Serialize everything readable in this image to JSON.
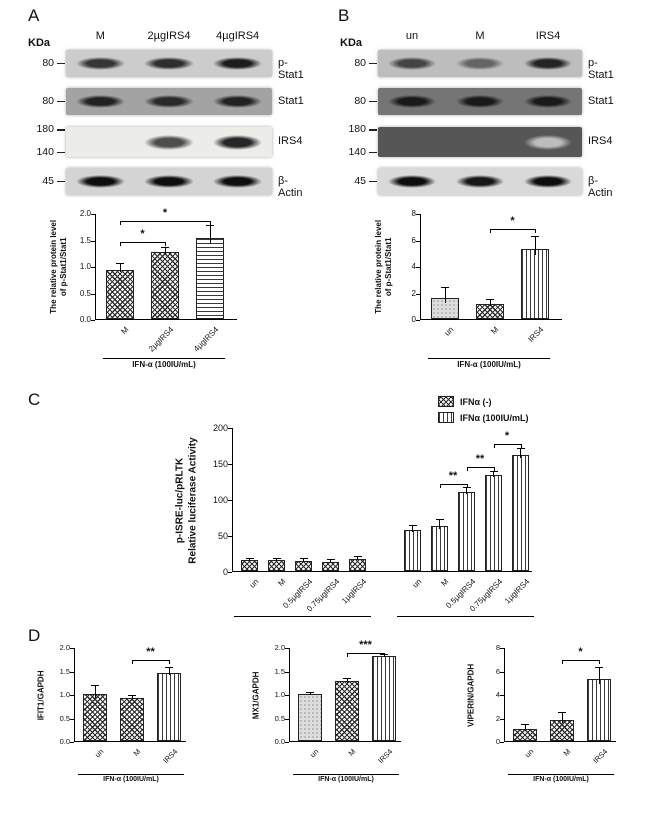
{
  "figure": {
    "bg": "#ffffff",
    "ink": "#111111"
  },
  "panelA": {
    "label": "A",
    "kda": "KDa",
    "lanes": [
      "M",
      "2µgIRS4",
      "4µgIRS4"
    ],
    "blots": [
      {
        "markers": [
          "80"
        ],
        "protein": "p-Stat1",
        "bg": "#cccccc",
        "band_color": "#1c1c1c",
        "bands": [
          0.85,
          0.9,
          1
        ]
      },
      {
        "markers": [
          "80"
        ],
        "protein": "Stat1",
        "bg": "#a3a3a3",
        "band_color": "#141414",
        "bands": [
          0.9,
          0.85,
          0.9
        ]
      },
      {
        "markers": [
          "180",
          "140"
        ],
        "protein": "IRS4",
        "bg": "#ecece9",
        "band_color": "#262626",
        "bands": [
          0.05,
          0.8,
          1
        ]
      },
      {
        "markers": [
          "45"
        ],
        "protein": "β-Actin",
        "bg": "#d4d4d4",
        "band_color": "#0e0e0e",
        "bands": [
          1,
          1,
          1
        ]
      }
    ]
  },
  "panelB": {
    "label": "B",
    "kda": "KDa",
    "lanes": [
      "un",
      "M",
      "IRS4"
    ],
    "blots": [
      {
        "markers": [
          "80"
        ],
        "protein": "p-Stat1",
        "bg": "#bdbdbd",
        "band_color": "#1c1c1c",
        "bands": [
          0.75,
          0.55,
          0.95
        ]
      },
      {
        "markers": [
          "80"
        ],
        "protein": "Stat1",
        "bg": "#757575",
        "band_color": "#101010",
        "bands": [
          0.9,
          0.9,
          0.9
        ]
      },
      {
        "markers": [
          "180",
          "140"
        ],
        "protein": "IRS4",
        "bg": "#565656",
        "band_color": "#d6d6d6",
        "bands": [
          0,
          0.1,
          0.8
        ]
      },
      {
        "markers": [
          "45"
        ],
        "protein": "β-Actin",
        "bg": "#d9d9d9",
        "band_color": "#0e0e0e",
        "bands": [
          1,
          0.95,
          1
        ]
      }
    ]
  },
  "panelC": {
    "label": "C",
    "legend": [
      {
        "label": "IFNα (-)",
        "pattern": "checker"
      },
      {
        "label": "IFNα (100IU/mL)",
        "pattern": "vstripe"
      }
    ]
  },
  "panelD": {
    "label": "D"
  },
  "chart_data": [
    {
      "id": "A",
      "type": "bar",
      "ylabel": "The relative protein level\nof p-Stat1/Stat1",
      "xlabel": "IFN-α (100IU/mL)",
      "ylim": [
        0,
        2.0
      ],
      "yticks": [
        "0.0",
        "0.5",
        "1.0",
        "1.5",
        "2.0"
      ],
      "groups": [
        {
          "bars": [
            {
              "label": "M",
              "value": 0.93,
              "error": 0.1,
              "pattern": "checker"
            },
            {
              "label": "2µgIRS4",
              "value": 1.27,
              "error": 0.07,
              "pattern": "checker"
            },
            {
              "label": "4µgIRS4",
              "value": 1.53,
              "error": 0.22,
              "pattern": "hstripe"
            }
          ]
        }
      ],
      "significance": [
        {
          "a": 0,
          "b": 1,
          "label": "*",
          "y": 1.48
        },
        {
          "a": 0,
          "b": 2,
          "label": "*",
          "y": 1.87
        }
      ]
    },
    {
      "id": "B",
      "type": "bar",
      "ylabel": "The relative protein level\nof p-Stat1/Stat1",
      "xlabel": "IFN-α (100IU/mL)",
      "ylim": [
        0,
        8
      ],
      "yticks": [
        "0",
        "2",
        "4",
        "6",
        "8"
      ],
      "groups": [
        {
          "bars": [
            {
              "label": "un",
              "value": 1.6,
              "error": 0.75,
              "pattern": "dots"
            },
            {
              "label": "M",
              "value": 1.15,
              "error": 0.3,
              "pattern": "checker"
            },
            {
              "label": "IRS4",
              "value": 5.3,
              "error": 0.9,
              "pattern": "vstripe"
            }
          ]
        }
      ],
      "significance": [
        {
          "a": 1,
          "b": 2,
          "label": "*",
          "y": 6.9
        }
      ]
    },
    {
      "id": "C",
      "type": "bar",
      "ylabel": "p-ISRE-luc/pRLTK\nRelative luciferase Activity",
      "xlabel": "",
      "ylim": [
        0,
        200
      ],
      "yticks": [
        "0",
        "50",
        "100",
        "150",
        "200"
      ],
      "groups": [
        {
          "name": "IFNα (-)",
          "bars": [
            {
              "label": "un",
              "value": 15,
              "error": 2,
              "pattern": "checker"
            },
            {
              "label": "M",
              "value": 15,
              "error": 2,
              "pattern": "checker"
            },
            {
              "label": "0.5µgIRS4",
              "value": 14,
              "error": 2,
              "pattern": "checker"
            },
            {
              "label": "0.75µgIRS4",
              "value": 13,
              "error": 2,
              "pattern": "checker"
            },
            {
              "label": "1µgIRS4",
              "value": 17,
              "error": 3,
              "pattern": "checker"
            }
          ]
        },
        {
          "name": "IFNα (100IU/mL)",
          "bars": [
            {
              "label": "un",
              "value": 57,
              "error": 5,
              "pattern": "vstripe"
            },
            {
              "label": "M",
              "value": 63,
              "error": 8,
              "pattern": "vstripe"
            },
            {
              "label": "0.5µgIRS4",
              "value": 110,
              "error": 5,
              "pattern": "vstripe"
            },
            {
              "label": "0.75µgIRS4",
              "value": 133,
              "error": 4,
              "pattern": "vstripe"
            },
            {
              "label": "1µgIRS4",
              "value": 161,
              "error": 8,
              "pattern": "vstripe"
            }
          ]
        }
      ],
      "significance": [
        {
          "a": 6,
          "b": 7,
          "label": "**",
          "y": 122
        },
        {
          "a": 7,
          "b": 8,
          "label": "**",
          "y": 146
        },
        {
          "a": 8,
          "b": 9,
          "label": "*",
          "y": 178
        }
      ]
    },
    {
      "id": "D1",
      "type": "bar",
      "ylabel": "IFIT1/GAPDH",
      "xlabel": "IFN-α (100IU/mL)",
      "ylim": [
        0,
        2.0
      ],
      "yticks": [
        "0.0",
        "0.5",
        "1.0",
        "1.5",
        "2.0"
      ],
      "groups": [
        {
          "bars": [
            {
              "label": "un",
              "value": 1.0,
              "error": 0.18,
              "pattern": "checker"
            },
            {
              "label": "M",
              "value": 0.92,
              "error": 0.04,
              "pattern": "checker"
            },
            {
              "label": "IRS4",
              "value": 1.45,
              "error": 0.1,
              "pattern": "vstripe"
            }
          ]
        }
      ],
      "significance": [
        {
          "a": 1,
          "b": 2,
          "label": "**",
          "y": 1.75
        }
      ]
    },
    {
      "id": "D2",
      "type": "bar",
      "ylabel": "MX1/GAPDH",
      "xlabel": "IFN-α (100IU/mL)",
      "ylim": [
        0,
        2.0
      ],
      "yticks": [
        "0.0",
        "0.5",
        "1.0",
        "1.5",
        "2.0"
      ],
      "groups": [
        {
          "bars": [
            {
              "label": "un",
              "value": 1.0,
              "error": 0.03,
              "pattern": "dots"
            },
            {
              "label": "M",
              "value": 1.27,
              "error": 0.05,
              "pattern": "checker"
            },
            {
              "label": "IRS4",
              "value": 1.8,
              "error": 0.04,
              "pattern": "vstripe"
            }
          ]
        }
      ],
      "significance": [
        {
          "a": 1,
          "b": 2,
          "label": "***",
          "y": 1.9
        }
      ]
    },
    {
      "id": "D3",
      "type": "bar",
      "ylabel": "VIPERIN/GAPDH",
      "xlabel": "IFN-α (100IU/mL)",
      "ylim": [
        0,
        8
      ],
      "yticks": [
        "0",
        "2",
        "4",
        "6",
        "8"
      ],
      "groups": [
        {
          "bars": [
            {
              "label": "un",
              "value": 1.0,
              "error": 0.35,
              "pattern": "checker"
            },
            {
              "label": "M",
              "value": 1.8,
              "error": 0.6,
              "pattern": "checker"
            },
            {
              "label": "IRS4",
              "value": 5.3,
              "error": 0.9,
              "pattern": "vstripe"
            }
          ]
        }
      ],
      "significance": [
        {
          "a": 1,
          "b": 2,
          "label": "*",
          "y": 7.0
        }
      ]
    }
  ]
}
